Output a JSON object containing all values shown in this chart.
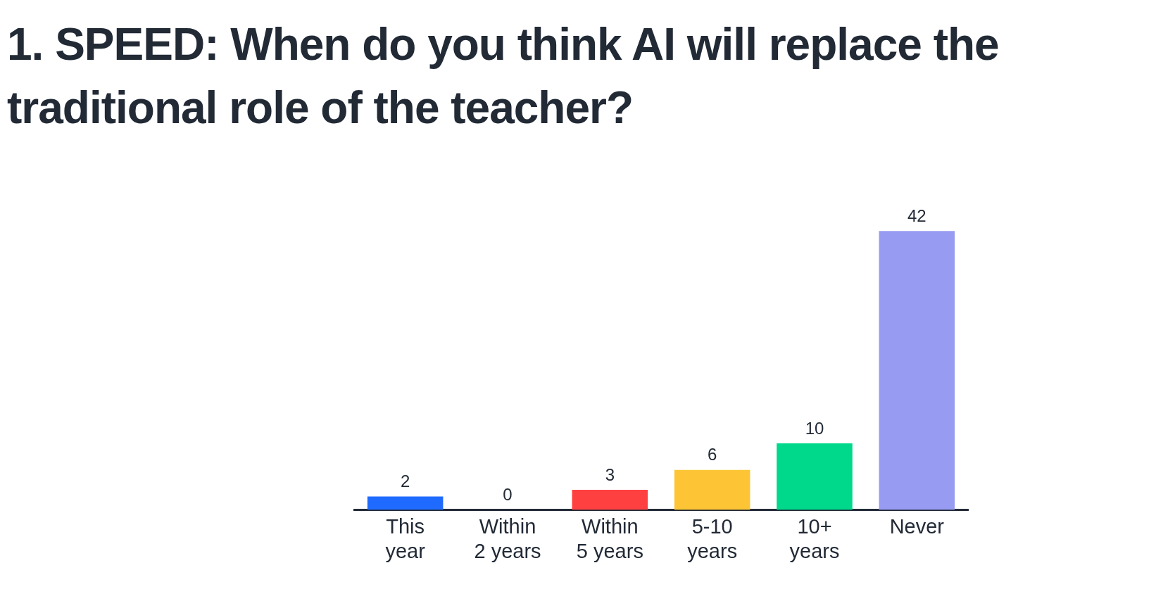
{
  "chart_data": {
    "type": "bar",
    "title": "1. SPEED: When do you think AI will replace the traditional role of the teacher?",
    "categories": [
      "This year",
      "Within 2 years",
      "Within 5 years",
      "5-10 years",
      "10+ years",
      "Never"
    ],
    "values": [
      2,
      0,
      3,
      6,
      10,
      42
    ],
    "colors": [
      "#1f6bff",
      "#7f7f7f",
      "#ff4040",
      "#fdc535",
      "#00d98b",
      "#979bf2"
    ],
    "data_labels": true,
    "grid": false,
    "legend": false
  }
}
